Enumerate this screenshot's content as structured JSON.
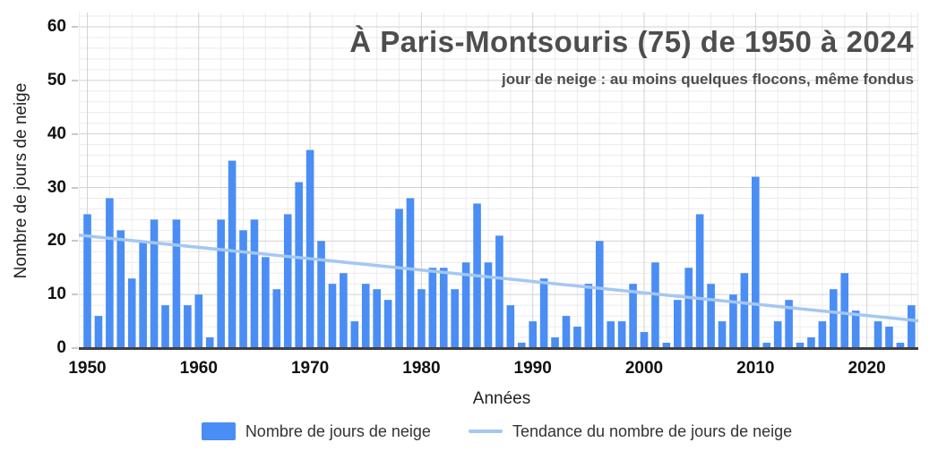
{
  "header": {
    "title": "À Paris-Montsouris (75) de 1950 à 2024",
    "subtitle": "jour de neige : au moins quelques flocons, même fondus"
  },
  "chart_data": {
    "type": "bar",
    "title": "À Paris-Montsouris (75) de 1950 à 2024",
    "subtitle": "jour de neige : au moins quelques flocons, même fondus",
    "xlabel": "Années",
    "ylabel": "Nombre de jours de neige",
    "ylim": [
      0,
      60
    ],
    "grid": "on",
    "minor_grid_step_y": 2,
    "minor_grid_step_x_years": 2,
    "yticks": [
      0,
      10,
      20,
      30,
      40,
      50,
      60
    ],
    "xticks": [
      1950,
      1960,
      1970,
      1980,
      1990,
      2000,
      2010,
      2020
    ],
    "years": [
      1950,
      1951,
      1952,
      1953,
      1954,
      1955,
      1956,
      1957,
      1958,
      1959,
      1960,
      1961,
      1962,
      1963,
      1964,
      1965,
      1966,
      1967,
      1968,
      1969,
      1970,
      1971,
      1972,
      1973,
      1974,
      1975,
      1976,
      1977,
      1978,
      1979,
      1980,
      1981,
      1982,
      1983,
      1984,
      1985,
      1986,
      1987,
      1988,
      1989,
      1990,
      1991,
      1992,
      1993,
      1994,
      1995,
      1996,
      1997,
      1998,
      1999,
      2000,
      2001,
      2002,
      2003,
      2004,
      2005,
      2006,
      2007,
      2008,
      2009,
      2010,
      2011,
      2012,
      2013,
      2014,
      2015,
      2016,
      2017,
      2018,
      2019,
      2020,
      2021,
      2022,
      2023,
      2024
    ],
    "values": [
      25,
      6,
      28,
      22,
      13,
      20,
      24,
      8,
      24,
      8,
      10,
      2,
      24,
      35,
      22,
      24,
      17,
      11,
      25,
      31,
      37,
      20,
      12,
      14,
      5,
      12,
      11,
      9,
      26,
      28,
      11,
      15,
      15,
      11,
      16,
      27,
      16,
      21,
      8,
      1,
      5,
      13,
      2,
      6,
      4,
      12,
      20,
      5,
      5,
      12,
      3,
      16,
      1,
      9,
      15,
      25,
      12,
      5,
      10,
      14,
      32,
      1,
      5,
      9,
      1,
      2,
      5,
      11,
      14,
      7,
      0,
      5,
      4,
      1,
      8
    ],
    "trend": {
      "label": "Tendance du nombre de jours de neige",
      "start_value": 21.1,
      "end_value": 5.1
    },
    "legend": [
      {
        "label": "Nombre de jours de neige",
        "type": "bar"
      },
      {
        "label": "Tendance du nombre de jours de neige",
        "type": "line"
      }
    ],
    "legend_position": "bottom",
    "colors": {
      "bar": "#4a8df5",
      "trend": "#a4c7f4",
      "grid_minor": "#ebebeb",
      "grid_major": "#d2d2d2",
      "axis": "#3f3f3f",
      "title": "#4d4d4d",
      "tick_text": "#111111",
      "axis_label_text": "#222222",
      "legend_text": "#333333"
    }
  }
}
